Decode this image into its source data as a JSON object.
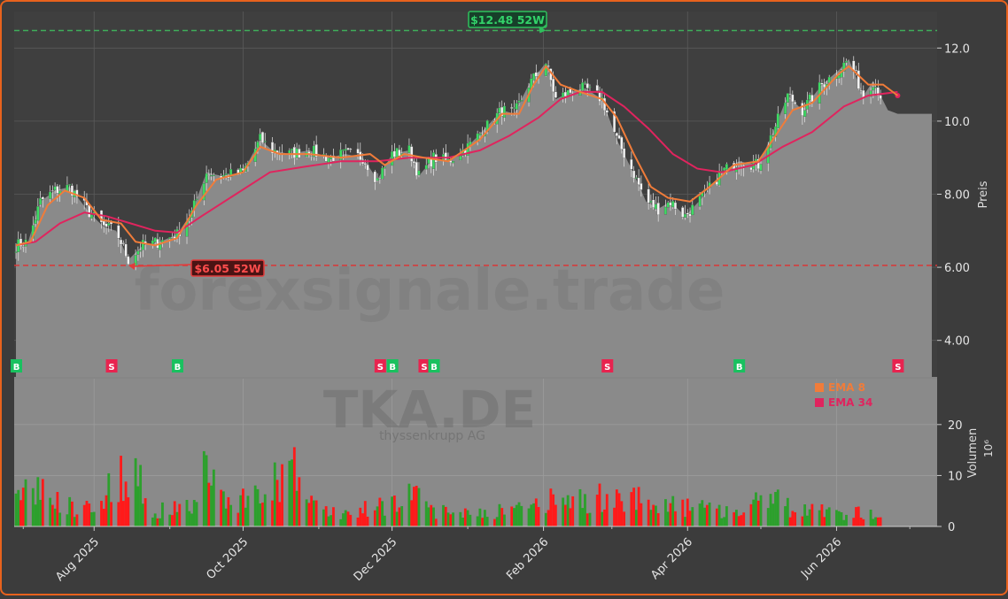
{
  "chart_data": {
    "type": "candlestick",
    "ticker": "TKA.DE",
    "company": "thyssenkrupp AG",
    "watermark": "forexsignale.trade",
    "price_axis_label": "Preis",
    "volume_axis_label": "Volumen",
    "volume_unit": "10⁶",
    "price_ylim": [
      3.0,
      13.0
    ],
    "price_ticks": [
      "4.00",
      "6.00",
      "8.00",
      "10.0",
      "12.0"
    ],
    "volume_ylim": [
      0,
      29
    ],
    "volume_ticks": [
      "0",
      "10",
      "20"
    ],
    "x_ticks": [
      "Aug 2025",
      "Oct 2025",
      "Dec 2025",
      "Feb 2026",
      "Apr 2026",
      "Jun 2026"
    ],
    "x_tick_dates": [
      "2025-08-01",
      "2025-10-01",
      "2025-12-01",
      "2026-02-01",
      "2026-04-01",
      "2026-06-01"
    ],
    "date_range": [
      "2025-06-30",
      "2026-07-10"
    ],
    "high_52w": {
      "value": 12.48,
      "label": "$12.48 52W",
      "date": "2026-02-02"
    },
    "low_52w": {
      "value": 6.05,
      "label": "$6.05 52W",
      "date": "2025-08-15"
    },
    "legend": [
      {
        "name": "EMA 8",
        "color": "#f07c3a"
      },
      {
        "name": "EMA 34",
        "color": "#e0245e"
      }
    ],
    "colors": {
      "up": "#2ca02c",
      "down": "#ff1a1a",
      "buy": "#19c15f",
      "sell": "#e8234f",
      "area": "#8c8c8c",
      "frame": "#e8621d"
    },
    "price_path": [
      [
        "2025-06-30",
        6.6
      ],
      [
        "2025-07-05",
        6.7
      ],
      [
        "2025-07-10",
        7.8
      ],
      [
        "2025-07-16",
        8.1
      ],
      [
        "2025-07-22",
        8.2
      ],
      [
        "2025-07-30",
        7.5
      ],
      [
        "2025-08-05",
        7.1
      ],
      [
        "2025-08-10",
        7.0
      ],
      [
        "2025-08-15",
        6.2
      ],
      [
        "2025-08-21",
        6.6
      ],
      [
        "2025-08-28",
        6.7
      ],
      [
        "2025-09-04",
        6.9
      ],
      [
        "2025-09-10",
        7.5
      ],
      [
        "2025-09-16",
        8.6
      ],
      [
        "2025-09-22",
        8.5
      ],
      [
        "2025-10-01",
        8.6
      ],
      [
        "2025-10-08",
        9.5
      ],
      [
        "2025-10-13",
        9.2
      ],
      [
        "2025-10-20",
        9.1
      ],
      [
        "2025-10-28",
        9.2
      ],
      [
        "2025-11-05",
        9.0
      ],
      [
        "2025-11-12",
        9.1
      ],
      [
        "2025-11-19",
        9.0
      ],
      [
        "2025-11-25",
        8.4
      ],
      [
        "2025-12-01",
        9.1
      ],
      [
        "2025-12-08",
        9.2
      ],
      [
        "2025-12-12",
        8.5
      ],
      [
        "2025-12-18",
        9.0
      ],
      [
        "2025-12-24",
        8.9
      ],
      [
        "2026-01-01",
        9.3
      ],
      [
        "2026-01-08",
        9.8
      ],
      [
        "2026-01-15",
        10.3
      ],
      [
        "2026-01-20",
        10.2
      ],
      [
        "2026-01-26",
        11.0
      ],
      [
        "2026-02-02",
        11.6
      ],
      [
        "2026-02-06",
        10.6
      ],
      [
        "2026-02-12",
        10.8
      ],
      [
        "2026-02-18",
        10.9
      ],
      [
        "2026-02-25",
        10.6
      ],
      [
        "2026-03-03",
        9.5
      ],
      [
        "2026-03-09",
        8.7
      ],
      [
        "2026-03-15",
        7.8
      ],
      [
        "2026-03-20",
        7.6
      ],
      [
        "2026-03-25",
        7.8
      ],
      [
        "2026-03-31",
        7.4
      ],
      [
        "2026-04-07",
        7.9
      ],
      [
        "2026-04-15",
        8.6
      ],
      [
        "2026-04-22",
        8.9
      ],
      [
        "2026-04-30",
        8.8
      ],
      [
        "2026-05-06",
        9.7
      ],
      [
        "2026-05-12",
        10.7
      ],
      [
        "2026-05-18",
        10.3
      ],
      [
        "2026-05-26",
        11.0
      ],
      [
        "2026-06-02",
        11.4
      ],
      [
        "2026-06-06",
        11.7
      ],
      [
        "2026-06-12",
        10.7
      ],
      [
        "2026-06-16",
        11.1
      ],
      [
        "2026-06-22",
        10.3
      ],
      [
        "2026-06-26",
        10.2
      ],
      [
        "2026-07-10",
        10.2
      ]
    ],
    "ema8": [
      [
        "2025-06-30",
        6.6
      ],
      [
        "2025-07-06",
        6.7
      ],
      [
        "2025-07-13",
        7.7
      ],
      [
        "2025-07-20",
        8.1
      ],
      [
        "2025-07-28",
        7.9
      ],
      [
        "2025-08-04",
        7.3
      ],
      [
        "2025-08-12",
        7.2
      ],
      [
        "2025-08-18",
        6.7
      ],
      [
        "2025-08-26",
        6.6
      ],
      [
        "2025-09-04",
        6.8
      ],
      [
        "2025-09-12",
        7.7
      ],
      [
        "2025-09-20",
        8.4
      ],
      [
        "2025-10-01",
        8.6
      ],
      [
        "2025-10-08",
        9.3
      ],
      [
        "2025-10-16",
        9.1
      ],
      [
        "2025-10-28",
        9.1
      ],
      [
        "2025-11-10",
        9.0
      ],
      [
        "2025-11-22",
        9.1
      ],
      [
        "2025-11-28",
        8.8
      ],
      [
        "2025-12-06",
        9.1
      ],
      [
        "2025-12-14",
        9.0
      ],
      [
        "2025-12-24",
        8.9
      ],
      [
        "2026-01-06",
        9.5
      ],
      [
        "2026-01-15",
        10.2
      ],
      [
        "2026-01-22",
        10.2
      ],
      [
        "2026-01-28",
        11.0
      ],
      [
        "2026-02-02",
        11.5
      ],
      [
        "2026-02-08",
        11.0
      ],
      [
        "2026-02-16",
        10.8
      ],
      [
        "2026-02-25",
        10.6
      ],
      [
        "2026-03-03",
        10.1
      ],
      [
        "2026-03-10",
        9.1
      ],
      [
        "2026-03-17",
        8.2
      ],
      [
        "2026-03-24",
        7.9
      ],
      [
        "2026-04-02",
        7.8
      ],
      [
        "2026-04-10",
        8.2
      ],
      [
        "2026-04-20",
        8.8
      ],
      [
        "2026-04-30",
        8.9
      ],
      [
        "2026-05-07",
        9.6
      ],
      [
        "2026-05-14",
        10.3
      ],
      [
        "2026-05-22",
        10.5
      ],
      [
        "2026-06-02",
        11.3
      ],
      [
        "2026-06-06",
        11.5
      ],
      [
        "2026-06-14",
        11.0
      ],
      [
        "2026-06-20",
        11.0
      ],
      [
        "2026-06-26",
        10.7
      ]
    ],
    "ema34": [
      [
        "2025-06-30",
        6.6
      ],
      [
        "2025-07-08",
        6.7
      ],
      [
        "2025-07-18",
        7.2
      ],
      [
        "2025-07-28",
        7.5
      ],
      [
        "2025-08-06",
        7.4
      ],
      [
        "2025-08-16",
        7.2
      ],
      [
        "2025-08-26",
        7.0
      ],
      [
        "2025-09-04",
        6.95
      ],
      [
        "2025-09-14",
        7.4
      ],
      [
        "2025-09-28",
        8.0
      ],
      [
        "2025-10-12",
        8.6
      ],
      [
        "2025-10-26",
        8.75
      ],
      [
        "2025-11-10",
        8.9
      ],
      [
        "2025-11-25",
        8.9
      ],
      [
        "2025-12-08",
        9.0
      ],
      [
        "2025-12-24",
        9.0
      ],
      [
        "2026-01-06",
        9.2
      ],
      [
        "2026-01-18",
        9.6
      ],
      [
        "2026-01-30",
        10.1
      ],
      [
        "2026-02-08",
        10.6
      ],
      [
        "2026-02-16",
        10.8
      ],
      [
        "2026-02-25",
        10.8
      ],
      [
        "2026-03-06",
        10.4
      ],
      [
        "2026-03-16",
        9.8
      ],
      [
        "2026-03-26",
        9.1
      ],
      [
        "2026-04-05",
        8.7
      ],
      [
        "2026-04-15",
        8.6
      ],
      [
        "2026-04-28",
        8.8
      ],
      [
        "2026-05-10",
        9.3
      ],
      [
        "2026-05-22",
        9.7
      ],
      [
        "2026-06-04",
        10.4
      ],
      [
        "2026-06-14",
        10.7
      ],
      [
        "2026-06-26",
        10.8
      ]
    ],
    "signals": [
      {
        "date": "2025-06-30",
        "type": "B"
      },
      {
        "date": "2025-08-08",
        "type": "S"
      },
      {
        "date": "2025-09-04",
        "type": "B"
      },
      {
        "date": "2025-11-26",
        "type": "S"
      },
      {
        "date": "2025-12-01",
        "type": "B"
      },
      {
        "date": "2025-12-14",
        "type": "S"
      },
      {
        "date": "2025-12-18",
        "type": "B"
      },
      {
        "date": "2026-02-27",
        "type": "S"
      },
      {
        "date": "2026-04-22",
        "type": "B"
      },
      {
        "date": "2026-06-26",
        "type": "S"
      }
    ],
    "volume_profile": [
      [
        "2025-06-30",
        5
      ],
      [
        "2025-07-08",
        8
      ],
      [
        "2025-07-20",
        4
      ],
      [
        "2025-08-01",
        4
      ],
      [
        "2025-08-16",
        12
      ],
      [
        "2025-08-25",
        3
      ],
      [
        "2025-09-10",
        4
      ],
      [
        "2025-09-15",
        11
      ],
      [
        "2025-09-25",
        5
      ],
      [
        "2025-10-10",
        6
      ],
      [
        "2025-10-20",
        12
      ],
      [
        "2025-11-01",
        3
      ],
      [
        "2025-11-15",
        2.5
      ],
      [
        "2025-12-08",
        6
      ],
      [
        "2025-12-20",
        3
      ],
      [
        "2026-01-15",
        3
      ],
      [
        "2026-02-05",
        5
      ],
      [
        "2026-03-10",
        6
      ],
      [
        "2026-03-25",
        4
      ],
      [
        "2026-04-25",
        3
      ],
      [
        "2026-05-01",
        7
      ],
      [
        "2026-05-15",
        3
      ],
      [
        "2026-06-15",
        2.5
      ],
      [
        "2026-06-26",
        2
      ]
    ]
  }
}
